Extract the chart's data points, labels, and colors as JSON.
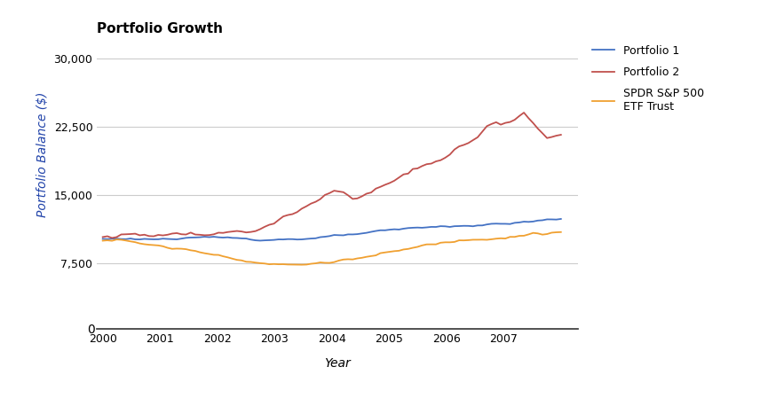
{
  "title": "Portfolio Growth",
  "xlabel": "Year",
  "ylabel": "Portfolio Balance ($)",
  "line_colors": {
    "p1": "#4472C4",
    "p2": "#C0504D",
    "sp500": "#F0A030"
  },
  "legend_labels": [
    "Portfolio 1",
    "Portfolio 2",
    "SPDR S&P 500\nETF Trust"
  ],
  "ylim_main": [
    7000,
    32000
  ],
  "yticks_main": [
    7500,
    15000,
    22500,
    30000
  ],
  "xlim": [
    1999.9,
    2008.3
  ],
  "xticks": [
    2000,
    2001,
    2002,
    2003,
    2004,
    2005,
    2006,
    2007
  ],
  "background_color": "#ffffff",
  "grid_color": "#cccccc",
  "title_fontsize": 11,
  "axis_label_fontsize": 10,
  "tick_fontsize": 9,
  "ylabel_color": "#2244AA",
  "line_width": 1.3
}
